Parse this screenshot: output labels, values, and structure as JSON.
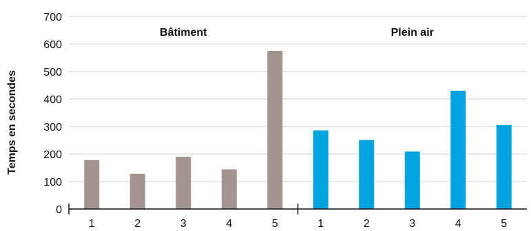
{
  "chart_data": {
    "type": "bar",
    "title": "",
    "xlabel": "",
    "ylabel": "Temps en secondes",
    "ylim": [
      0,
      700
    ],
    "yticks": [
      0,
      100,
      200,
      300,
      400,
      500,
      600,
      700
    ],
    "grid": true,
    "groups": [
      {
        "name": "Bâtiment",
        "color": "#a39490",
        "categories": [
          "1",
          "2",
          "3",
          "4",
          "5"
        ],
        "values": [
          178,
          128,
          190,
          144,
          575
        ]
      },
      {
        "name": "Plein air",
        "color": "#00a3e0",
        "categories": [
          "1",
          "2",
          "3",
          "4",
          "5"
        ],
        "values": [
          286,
          251,
          209,
          430,
          305
        ]
      }
    ]
  }
}
